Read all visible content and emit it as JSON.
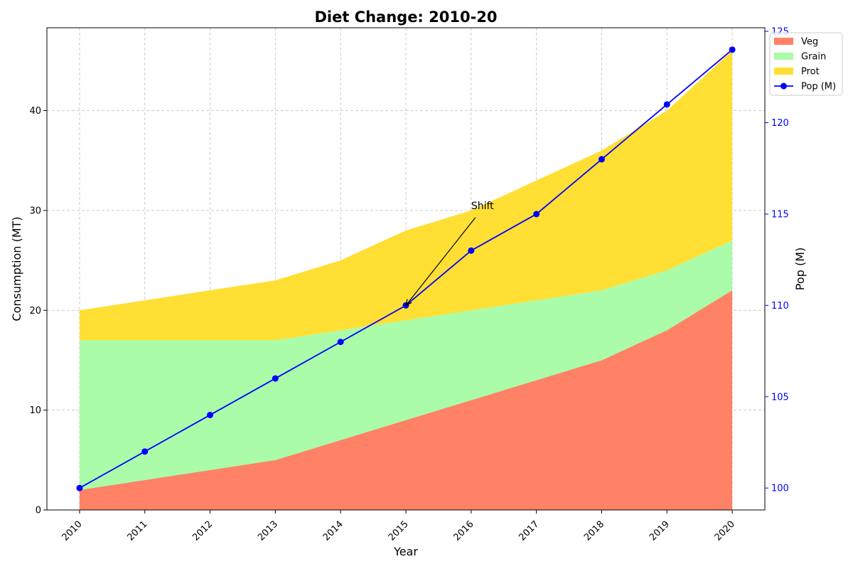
{
  "chart_data": {
    "type": "area",
    "title": "Diet Change: 2010-20",
    "xlabel": "Year",
    "ylabel": "Consumption (MT)",
    "y2label": "Pop (M)",
    "x": [
      2010,
      2011,
      2012,
      2013,
      2014,
      2015,
      2016,
      2017,
      2018,
      2019,
      2020
    ],
    "ylim": [
      0,
      48.3
    ],
    "y2lim": [
      98.8,
      125.2
    ],
    "yticks": [
      0,
      10,
      20,
      30,
      40
    ],
    "y2ticks": [
      100,
      105,
      110,
      115,
      120,
      125
    ],
    "grid": true,
    "stacked": true,
    "series": [
      {
        "name": "Veg",
        "color": "#ff8266",
        "values": [
          2,
          3,
          4,
          5,
          7,
          9,
          11,
          13,
          15,
          18,
          22
        ]
      },
      {
        "name": "Grain",
        "color": "#aafca8",
        "values": [
          15,
          14,
          13,
          12,
          11,
          10,
          9,
          8,
          7,
          6,
          5
        ]
      },
      {
        "name": "Prot",
        "color": "#ffdf33",
        "values": [
          3,
          4,
          5,
          6,
          7,
          9,
          10,
          12,
          14,
          16,
          19
        ]
      }
    ],
    "line_series": {
      "name": "Pop (M)",
      "color": "#0000ff",
      "axis": "right",
      "values": [
        100,
        102,
        104,
        106,
        108,
        110,
        113,
        115,
        118,
        121,
        124
      ]
    },
    "annotation": {
      "text": "Shift",
      "x": 2015,
      "y2": 110,
      "text_x": 2016,
      "text_y": 30
    },
    "legend": {
      "position": "top-right",
      "entries": [
        "Veg",
        "Grain",
        "Prot",
        "Pop (M)"
      ]
    }
  }
}
